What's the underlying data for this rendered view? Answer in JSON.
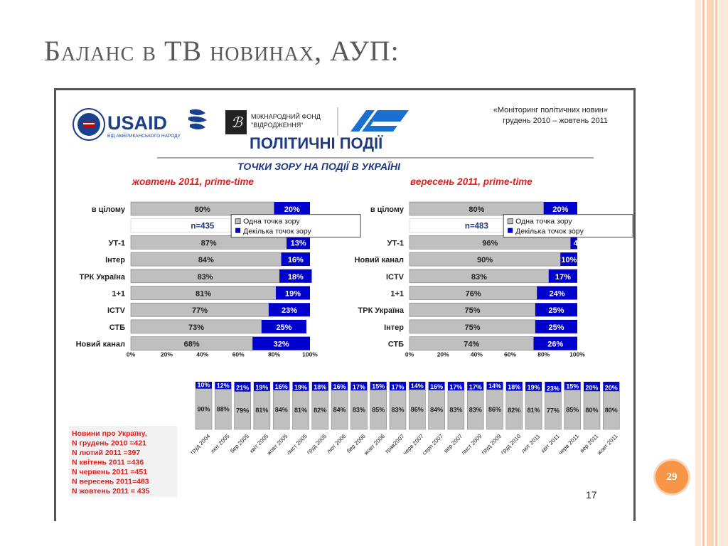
{
  "slide": {
    "title": "Баланс в ТВ новинах, АУП:",
    "page_number": "29"
  },
  "report": {
    "usaid_logo_text": "USAID",
    "usaid_subtitle": "ВІД АМЕРИКАНСЬКОГО НАРОДУ",
    "fund_line1": "МІЖНАРОДНИЙ ФОНД",
    "fund_line2": "\"ВІДРОДЖЕННЯ\"",
    "monitoring_line1": "«Моніторинг політичних новин»",
    "monitoring_line2": "грудень 2010 – жовтень 2011",
    "heading": "ПОЛІТИЧНІ ПОДІЇ",
    "subheading": "ТОЧКИ ЗОРУ НА ПОДІЇ  В УКРАЇНІ",
    "footer_page": "17",
    "legend_one": "Одна точка зору",
    "legend_many": "Декілька точок зору",
    "notes": [
      "Новини про Україну,",
      "N грудень 2010 =421",
      "N лютий 2011 =397",
      "N квітень 2011 =436",
      "N червень 2011 =451",
      "N вересень 2011=483",
      "N жовтень 2011 = 435"
    ]
  },
  "colors": {
    "one_view": "#bfbfbf",
    "many_views": "#0000cc",
    "red_label": "#e41e1e",
    "heading_blue": "#1f3a7d",
    "accent_orange": "#f79646"
  },
  "chart_data": [
    {
      "type": "bar",
      "title": "жовтень 2011,  prime-time",
      "orientation": "horizontal",
      "stacked": true,
      "n_label": "n=435",
      "categories": [
        "в цілому",
        "УТ-1",
        "Інтер",
        "ТРК Україна",
        "1+1",
        "ICTV",
        "СТБ",
        "Новий канал"
      ],
      "series": [
        {
          "name": "Одна точка зору",
          "values": [
            80,
            87,
            84,
            83,
            81,
            77,
            73,
            68
          ],
          "labels": [
            "80%",
            "87%",
            "84%",
            "83%",
            "81%",
            "77%",
            "73%",
            "68%"
          ]
        },
        {
          "name": "Декілька точок зору",
          "values": [
            20,
            13,
            16,
            18,
            19,
            23,
            25,
            32
          ],
          "labels": [
            "20%",
            "13%",
            "16%",
            "18%",
            "19%",
            "23%",
            "25%",
            "32%"
          ]
        }
      ],
      "x_ticks": [
        "0%",
        "20%",
        "40%",
        "60%",
        "80%",
        "100%"
      ],
      "xlim": [
        0,
        100
      ]
    },
    {
      "type": "bar",
      "title": "вересень 2011,  prime-time",
      "orientation": "horizontal",
      "stacked": true,
      "n_label": "n=483",
      "categories": [
        "в цілому",
        "УТ-1",
        "Новий канал",
        "ICTV",
        "1+1",
        "ТРК Україна",
        "Інтер",
        "СТБ"
      ],
      "series": [
        {
          "name": "Одна точка зору",
          "values": [
            80,
            96,
            90,
            83,
            76,
            75,
            75,
            74
          ],
          "labels": [
            "80%",
            "96%",
            "90%",
            "83%",
            "76%",
            "75%",
            "75%",
            "74%"
          ]
        },
        {
          "name": "Декілька точок зору",
          "values": [
            20,
            4,
            10,
            17,
            24,
            25,
            25,
            26
          ],
          "labels": [
            "20%",
            "4%",
            "10%",
            "17%",
            "24%",
            "25%",
            "25%",
            "26%"
          ]
        }
      ],
      "x_ticks": [
        "0%",
        "20%",
        "40%",
        "60%",
        "80%",
        "100%"
      ],
      "xlim": [
        0,
        100
      ]
    },
    {
      "type": "bar",
      "orientation": "vertical",
      "stacked": true,
      "categories": [
        "груд 2004",
        "лют 2005",
        "бер 2005",
        "квіт 2005",
        "жовт 2005",
        "лист 2005",
        "груд 2005",
        "лют 2006",
        "бер 2006",
        "жовт 2006",
        "трав2007",
        "черв 2007",
        "серп 2007",
        "вер 2007",
        "лист 2009",
        "груд 2009",
        "груд 2010",
        "лют 2011",
        "квіт 2011",
        "черв 2011",
        "вер 2011",
        "жовт 2011"
      ],
      "series": [
        {
          "name": "Одна точка зору",
          "values": [
            90,
            88,
            79,
            81,
            84,
            81,
            82,
            84,
            83,
            85,
            83,
            86,
            84,
            83,
            83,
            86,
            82,
            81,
            77,
            85,
            80,
            80
          ],
          "labels": [
            "90%",
            "88%",
            "79%",
            "81%",
            "84%",
            "81%",
            "82%",
            "84%",
            "83%",
            "85%",
            "83%",
            "86%",
            "84%",
            "83%",
            "83%",
            "86%",
            "82%",
            "81%",
            "77%",
            "85%",
            "80%",
            "80%"
          ]
        },
        {
          "name": "Декілька точок зору",
          "values": [
            10,
            12,
            21,
            19,
            16,
            19,
            18,
            16,
            17,
            15,
            17,
            14,
            16,
            17,
            17,
            14,
            18,
            19,
            23,
            15,
            20,
            20
          ],
          "labels": [
            "10%",
            "12%",
            "21%",
            "19%",
            "16%",
            "19%",
            "18%",
            "16%",
            "17%",
            "15%",
            "17%",
            "14%",
            "16%",
            "17%",
            "17%",
            "14%",
            "18%",
            "19%",
            "23%",
            "15%",
            "20%",
            "20%"
          ]
        }
      ],
      "ylim": [
        0,
        100
      ]
    }
  ]
}
